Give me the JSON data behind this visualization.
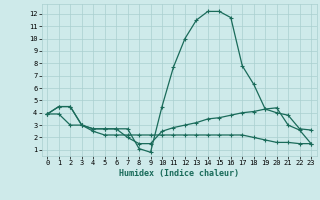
{
  "title": "",
  "xlabel": "Humidex (Indice chaleur)",
  "x": [
    0,
    1,
    2,
    3,
    4,
    5,
    6,
    7,
    8,
    9,
    10,
    11,
    12,
    13,
    14,
    15,
    16,
    17,
    18,
    19,
    20,
    21,
    22,
    23
  ],
  "line1": [
    3.9,
    4.5,
    4.5,
    3.0,
    2.7,
    2.7,
    2.7,
    2.7,
    1.1,
    0.8,
    4.5,
    7.7,
    10.0,
    11.5,
    12.2,
    12.2,
    11.7,
    7.8,
    6.3,
    4.3,
    4.0,
    3.8,
    2.7,
    2.6
  ],
  "line2": [
    3.9,
    4.5,
    4.5,
    3.0,
    2.7,
    2.7,
    2.7,
    2.0,
    1.5,
    1.5,
    2.5,
    2.8,
    3.0,
    3.2,
    3.5,
    3.6,
    3.8,
    4.0,
    4.1,
    4.3,
    4.4,
    3.0,
    2.6,
    1.5
  ],
  "line3": [
    3.9,
    3.9,
    3.0,
    3.0,
    2.5,
    2.2,
    2.2,
    2.2,
    2.2,
    2.2,
    2.2,
    2.2,
    2.2,
    2.2,
    2.2,
    2.2,
    2.2,
    2.2,
    2.0,
    1.8,
    1.6,
    1.6,
    1.5,
    1.5
  ],
  "line_color": "#1a6b5a",
  "bg_color": "#ceeaea",
  "grid_color": "#aacfcf",
  "ylim_min": 0.5,
  "ylim_max": 12.8,
  "xlim_min": -0.5,
  "xlim_max": 23.5,
  "yticks": [
    1,
    2,
    3,
    4,
    5,
    6,
    7,
    8,
    9,
    10,
    11,
    12
  ],
  "xticks": [
    0,
    1,
    2,
    3,
    4,
    5,
    6,
    7,
    8,
    9,
    10,
    11,
    12,
    13,
    14,
    15,
    16,
    17,
    18,
    19,
    20,
    21,
    22,
    23
  ],
  "tick_fontsize": 5.0,
  "xlabel_fontsize": 6.0,
  "linewidth": 0.9,
  "markersize": 3.0
}
